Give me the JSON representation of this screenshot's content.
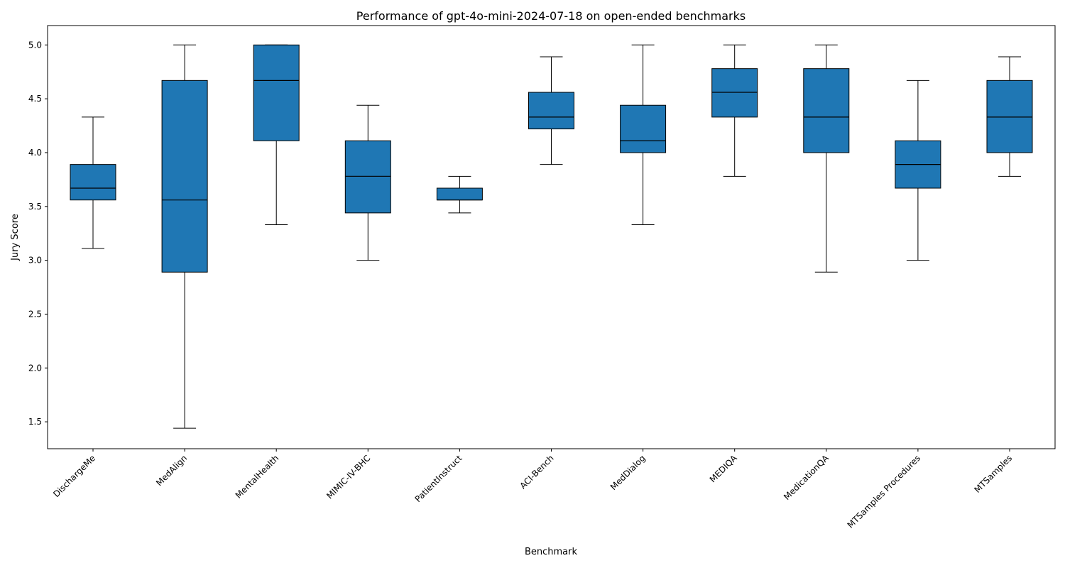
{
  "chart_data": {
    "type": "boxplot",
    "title": "Performance of gpt-4o-mini-2024-07-18 on open-ended benchmarks",
    "xlabel": "Benchmark",
    "ylabel": "Jury Score",
    "ylim": [
      1.25,
      5.18
    ],
    "yticks": [
      1.5,
      2.0,
      2.5,
      3.0,
      3.5,
      4.0,
      4.5,
      5.0
    ],
    "ytick_labels": [
      "1.5",
      "2.0",
      "2.5",
      "3.0",
      "3.5",
      "4.0",
      "4.5",
      "5.0"
    ],
    "grid": false,
    "box_color": "#1f77b4",
    "edge_color": "#000000",
    "categories": [
      "DischargeMe",
      "MedAlign",
      "MentalHealth",
      "MIMIC-IV-BHC",
      "PatientInstruct",
      "ACI-Bench",
      "MedDialog",
      "MEDIQA",
      "MedicationQA",
      "MTSamples Procedures",
      "MTSamples"
    ],
    "boxes": [
      {
        "name": "DischargeMe",
        "whislo": 3.11,
        "q1": 3.56,
        "med": 3.67,
        "q3": 3.89,
        "whishi": 4.33
      },
      {
        "name": "MedAlign",
        "whislo": 1.44,
        "q1": 2.89,
        "med": 3.56,
        "q3": 4.67,
        "whishi": 5.0
      },
      {
        "name": "MentalHealth",
        "whislo": 3.33,
        "q1": 4.11,
        "med": 4.67,
        "q3": 5.0,
        "whishi": 5.0
      },
      {
        "name": "MIMIC-IV-BHC",
        "whislo": 3.0,
        "q1": 3.44,
        "med": 3.78,
        "q3": 4.11,
        "whishi": 4.44
      },
      {
        "name": "PatientInstruct",
        "whislo": 3.44,
        "q1": 3.56,
        "med": 3.56,
        "q3": 3.67,
        "whishi": 3.78
      },
      {
        "name": "ACI-Bench",
        "whislo": 3.89,
        "q1": 4.22,
        "med": 4.33,
        "q3": 4.56,
        "whishi": 4.89
      },
      {
        "name": "MedDialog",
        "whislo": 3.33,
        "q1": 4.0,
        "med": 4.11,
        "q3": 4.44,
        "whishi": 5.0
      },
      {
        "name": "MEDIQA",
        "whislo": 3.78,
        "q1": 4.33,
        "med": 4.56,
        "q3": 4.78,
        "whishi": 5.0
      },
      {
        "name": "MedicationQA",
        "whislo": 2.89,
        "q1": 4.0,
        "med": 4.33,
        "q3": 4.78,
        "whishi": 5.0
      },
      {
        "name": "MTSamples Procedures",
        "whislo": 3.0,
        "q1": 3.67,
        "med": 3.89,
        "q3": 4.11,
        "whishi": 4.67
      },
      {
        "name": "MTSamples",
        "whislo": 3.78,
        "q1": 4.0,
        "med": 4.33,
        "q3": 4.67,
        "whishi": 4.89
      }
    ]
  }
}
